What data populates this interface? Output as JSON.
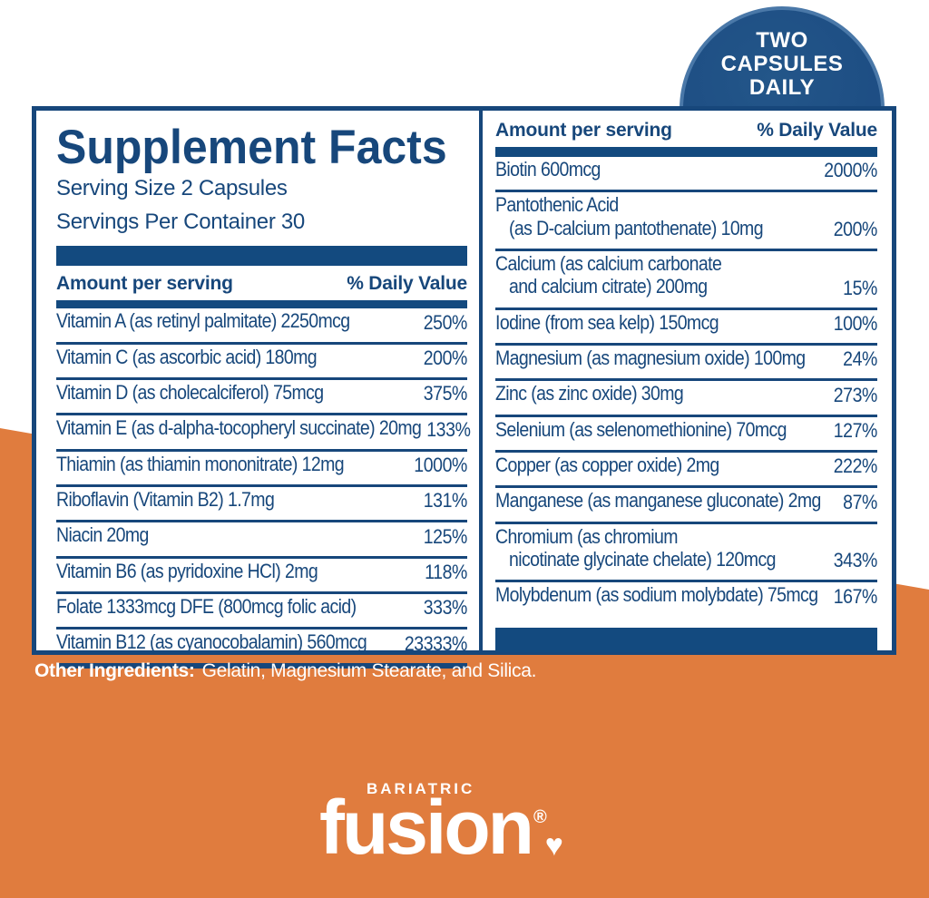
{
  "badge": {
    "lines": [
      "TWO",
      "CAPSULES",
      "DAILY"
    ]
  },
  "supplement_panel": {
    "title": "Supplement Facts",
    "serving_size": "Serving Size 2 Capsules",
    "servings_per_container": "Servings Per Container 30",
    "amount_header": "Amount per serving",
    "dv_header": "% Daily Value"
  },
  "left_table": {
    "rows": [
      {
        "name_lines": [
          "Vitamin A (as retinyl palmitate) 2250mcg"
        ],
        "daily_value": "250%"
      },
      {
        "name_lines": [
          "Vitamin C (as ascorbic acid) 180mg"
        ],
        "daily_value": "200%"
      },
      {
        "name_lines": [
          "Vitamin D (as cholecalciferol) 75mcg"
        ],
        "daily_value": "375%"
      },
      {
        "name_lines": [
          "Vitamin E (as d-alpha-tocopheryl succinate) 20mg"
        ],
        "daily_value": "133%"
      },
      {
        "name_lines": [
          "Thiamin (as thiamin mononitrate) 12mg"
        ],
        "daily_value": "1000%"
      },
      {
        "name_lines": [
          "Riboflavin (Vitamin B2) 1.7mg"
        ],
        "daily_value": "131%"
      },
      {
        "name_lines": [
          "Niacin 20mg"
        ],
        "daily_value": "125%"
      },
      {
        "name_lines": [
          "Vitamin B6 (as pyridoxine HCl) 2mg"
        ],
        "daily_value": "118%"
      },
      {
        "name_lines": [
          "Folate 1333mcg DFE (800mcg folic acid)"
        ],
        "daily_value": "333%"
      },
      {
        "name_lines": [
          "Vitamin B12 (as cyanocobalamin) 560mcg"
        ],
        "daily_value": "23333%"
      }
    ]
  },
  "right_table": {
    "rows": [
      {
        "name_lines": [
          "Biotin 600mcg"
        ],
        "daily_value": "2000%"
      },
      {
        "name_lines": [
          "Pantothenic Acid",
          "(as D-calcium pantothenate) 10mg"
        ],
        "daily_value": "200%"
      },
      {
        "name_lines": [
          "Calcium (as calcium carbonate",
          "and calcium citrate) 200mg"
        ],
        "daily_value": "15%"
      },
      {
        "name_lines": [
          "Iodine (from sea kelp) 150mcg"
        ],
        "daily_value": "100%"
      },
      {
        "name_lines": [
          "Magnesium (as magnesium oxide) 100mg"
        ],
        "daily_value": "24%"
      },
      {
        "name_lines": [
          "Zinc (as zinc oxide) 30mg"
        ],
        "daily_value": "273%"
      },
      {
        "name_lines": [
          "Selenium (as selenomethionine) 70mcg"
        ],
        "daily_value": "127%"
      },
      {
        "name_lines": [
          "Copper (as copper oxide) 2mg"
        ],
        "daily_value": "222%"
      },
      {
        "name_lines": [
          "Manganese (as manganese gluconate) 2mg"
        ],
        "daily_value": "87%"
      },
      {
        "name_lines": [
          "Chromium (as chromium",
          "nicotinate glycinate chelate) 120mcg"
        ],
        "daily_value": "343%"
      },
      {
        "name_lines": [
          "Molybdenum (as sodium molybdate) 75mcg"
        ],
        "daily_value": "167%"
      }
    ]
  },
  "other_ingredients": {
    "label": "Other Ingredients:",
    "text": "Gelatin, Magnesium Stearate, and Silica."
  },
  "logo": {
    "brand_top": "BARIATRIC",
    "brand_main": "fusion",
    "registered_mark": "®",
    "heart_icon": "♥"
  },
  "colors": {
    "navy": "#17477b",
    "navy_bar": "#134a7f",
    "orange": "#e07c3e",
    "badge_fill": "#1d4d83",
    "badge_rim": "#4a78a8",
    "text_on_orange": "#ffffff"
  }
}
